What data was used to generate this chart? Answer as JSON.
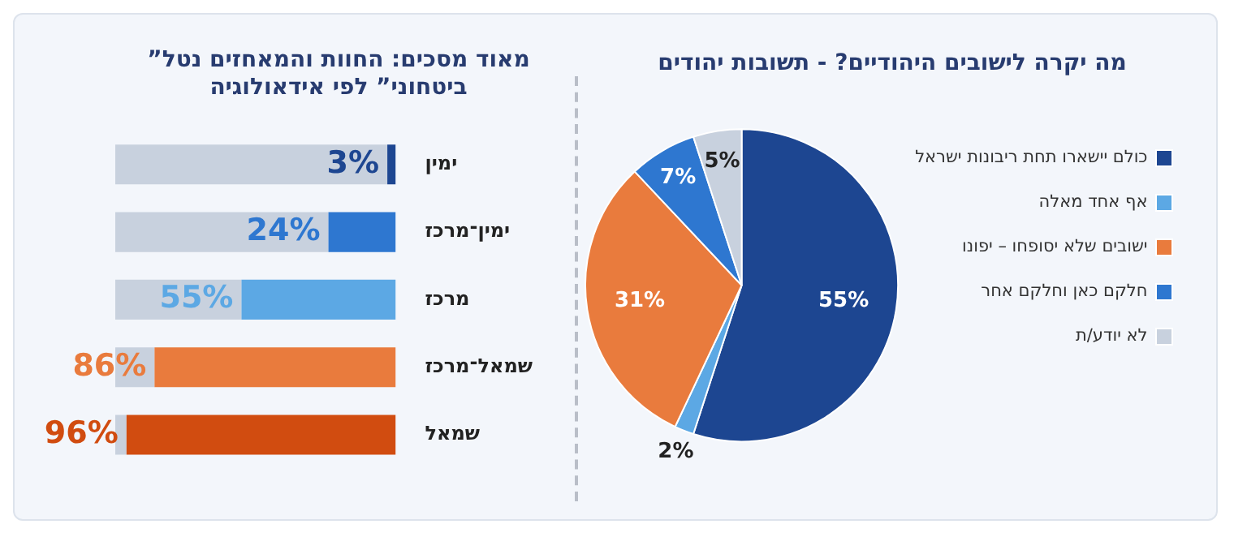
{
  "chart_data": [
    {
      "type": "bar",
      "orientation": "horizontal",
      "stacked": true,
      "title": "”מאוד מסכים: החוות והמאחזים נטל ביטחוני” לפי אידאולוגיה",
      "categories": [
        "ימין",
        "ימין־מרכז",
        "מרכז",
        "שמאל־מרכז",
        "שמאל"
      ],
      "xlim": [
        100,
        0
      ],
      "tick_labels": "y",
      "grid": false,
      "legend": false,
      "series": [
        {
          "colors": [
            "#1d4691",
            "#2e77d0",
            "#5ca8e4",
            "#e97b3d",
            "#d14c10"
          ],
          "values": [
            3,
            24,
            55,
            86,
            96
          ],
          "value_labels": [
            "3%",
            "24%",
            "55%",
            "86%",
            "96%"
          ]
        },
        {
          "color": "#c8d1de",
          "values": [
            97,
            76,
            45,
            14,
            4
          ]
        }
      ]
    },
    {
      "type": "pie",
      "title": "מה יקרה לישובים היהודיים? - תשובות יהודים",
      "categories": [
        "כולם יישארו תחת ריבונות ישראל",
        "אף אחד מאלה",
        "ישובים שלא יסופחו – יפונו",
        "חלקם כאן וחלקם אחר",
        "לא יודע/ת"
      ],
      "values": [
        55,
        2,
        31,
        7,
        5
      ],
      "colors": [
        "#1d4691",
        "#5ca8e4",
        "#e97b3d",
        "#2e77d0",
        "#c8d1de"
      ],
      "value_labels": [
        "55%",
        "2%",
        "31%",
        "7%",
        "5%"
      ],
      "legend": "right"
    }
  ]
}
